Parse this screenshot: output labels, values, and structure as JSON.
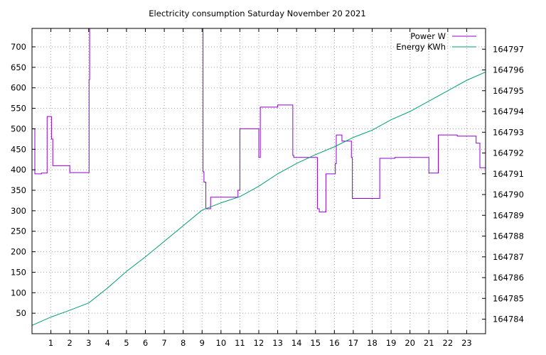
{
  "chart_data": {
    "type": "line",
    "title": "Electricity consumption Saturday November 20 2021",
    "xlabel": "",
    "ylabel": "",
    "y2label": "",
    "xlim": [
      0,
      24
    ],
    "ylim": [
      0,
      745
    ],
    "y2lim": [
      164783.3,
      164798.0
    ],
    "x_ticks": [
      1,
      2,
      3,
      4,
      5,
      6,
      7,
      8,
      9,
      10,
      11,
      12,
      13,
      14,
      15,
      16,
      17,
      18,
      19,
      20,
      21,
      22,
      23
    ],
    "y_ticks": [
      50,
      100,
      150,
      200,
      250,
      300,
      350,
      400,
      450,
      500,
      550,
      600,
      650,
      700
    ],
    "y2_ticks": [
      164784,
      164785,
      164786,
      164787,
      164788,
      164789,
      164790,
      164791,
      164792,
      164793,
      164794,
      164795,
      164796,
      164797
    ],
    "grid": true,
    "legend_position": "top-right",
    "series": [
      {
        "name": "Power W",
        "axis": "left",
        "color": "#9400d3",
        "step": true,
        "x": [
          0,
          0.15,
          0.5,
          0.8,
          1.03,
          1.1,
          1.75,
          2.0,
          3.0,
          3.02,
          3.05,
          3.1,
          8.98,
          9.05,
          9.1,
          9.2,
          9.45,
          10.9,
          11.0,
          11.05,
          12.0,
          12.08,
          12.15,
          12.9,
          13.0,
          13.8,
          13.85,
          15.1,
          15.2,
          15.55,
          16.05,
          16.1,
          16.4,
          16.9,
          16.95,
          18.4,
          19.2,
          20.5,
          21.0,
          21.5,
          22.5,
          23.5,
          23.7,
          24.0
        ],
        "values": [
          500,
          390,
          392,
          530,
          475,
          410,
          410,
          393,
          393,
          620,
          745,
          745,
          745,
          395,
          370,
          305,
          333,
          350,
          500,
          500,
          430,
          553,
          553,
          553,
          558,
          435,
          430,
          305,
          297,
          390,
          415,
          485,
          470,
          430,
          330,
          428,
          430,
          430,
          392,
          485,
          482,
          465,
          405,
          500
        ]
      },
      {
        "name": "Energy KWh",
        "axis": "right",
        "color": "#009e73",
        "step": false,
        "x": [
          0,
          1,
          2,
          3,
          4,
          5,
          6,
          7,
          8,
          9,
          10,
          11,
          12,
          13,
          14,
          15,
          16,
          17,
          18,
          19,
          20,
          21,
          22,
          23,
          24
        ],
        "values": [
          164783.7,
          164784.1,
          164784.43,
          164784.78,
          164785.5,
          164786.3,
          164787.0,
          164787.75,
          164788.5,
          164789.25,
          164789.6,
          164789.9,
          164790.4,
          164791.0,
          164791.5,
          164791.92,
          164792.3,
          164792.75,
          164793.1,
          164793.6,
          164794.0,
          164794.5,
          164795.0,
          164795.5,
          164795.9
        ]
      }
    ]
  }
}
